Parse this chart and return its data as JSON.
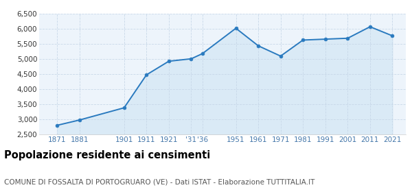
{
  "years": [
    1871,
    1881,
    1901,
    1911,
    1921,
    1931,
    1936,
    1951,
    1961,
    1971,
    1981,
    1991,
    2001,
    2011,
    2021
  ],
  "population": [
    2800,
    2975,
    3380,
    4470,
    4920,
    5000,
    5170,
    6010,
    5430,
    5090,
    5620,
    5650,
    5680,
    6060,
    5760
  ],
  "ylim": [
    2500,
    6500
  ],
  "xlim_min": 1863,
  "xlim_max": 2027,
  "yticks": [
    2500,
    3000,
    3500,
    4000,
    4500,
    5000,
    5500,
    6000,
    6500
  ],
  "x_tick_positions": [
    1871,
    1881,
    1901,
    1911,
    1921,
    1931,
    1936,
    1951,
    1961,
    1971,
    1981,
    1991,
    2001,
    2011,
    2021
  ],
  "x_tick_labels": [
    "1871",
    "1881",
    "1901",
    "1911",
    "1921",
    "'31",
    "'36",
    "1951",
    "1961",
    "1971",
    "1981",
    "1991",
    "2001",
    "2011",
    "2021"
  ],
  "line_color": "#2a7abf",
  "fill_color": "#daeaf6",
  "marker_color": "#2a7abf",
  "bg_color": "#edf4fb",
  "grid_color": "#c8d8e8",
  "spine_color": "#cccccc",
  "title": "Popolazione residente ai censimenti",
  "subtitle": "COMUNE DI FOSSALTA DI PORTOGRUARO (VE) - Dati ISTAT - Elaborazione TUTTITALIA.IT",
  "title_fontsize": 10.5,
  "subtitle_fontsize": 7.5,
  "tick_fontsize": 7.5,
  "x_tick_color": "#4477aa"
}
